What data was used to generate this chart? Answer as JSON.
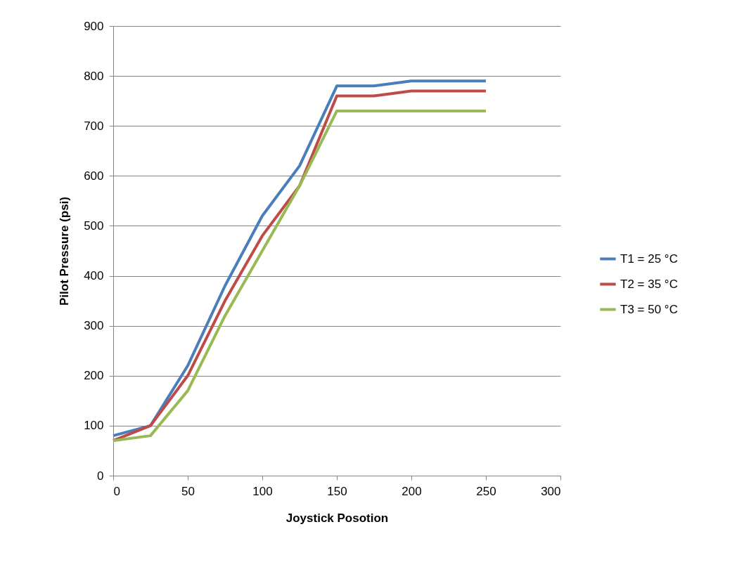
{
  "chart_data": {
    "type": "line",
    "xlabel": "Joystick Posotion",
    "ylabel": "Pilot Pressure (psi)",
    "x": [
      0,
      25,
      50,
      75,
      100,
      125,
      150,
      175,
      200,
      225,
      250
    ],
    "series": [
      {
        "name": "T1 = 25 °C",
        "color": "#4a7ebb",
        "values": [
          80,
          100,
          220,
          380,
          520,
          620,
          780,
          780,
          790,
          790,
          790
        ]
      },
      {
        "name": "T2 = 35 °C",
        "color": "#be4b48",
        "values": [
          70,
          100,
          200,
          350,
          480,
          580,
          760,
          760,
          770,
          770,
          770
        ]
      },
      {
        "name": "T3 = 50 °C",
        "color": "#98b954",
        "values": [
          70,
          80,
          170,
          320,
          450,
          580,
          730,
          730,
          730,
          730,
          730
        ]
      }
    ],
    "xlim": [
      0,
      300
    ],
    "xticks": [
      0,
      50,
      100,
      150,
      200,
      250,
      300
    ],
    "ylim": [
      0,
      900
    ],
    "yticks": [
      0,
      100,
      200,
      300,
      400,
      500,
      600,
      700,
      800,
      900
    ],
    "grid": "y",
    "legend": "right",
    "marker": "none",
    "line_style": "solid"
  }
}
